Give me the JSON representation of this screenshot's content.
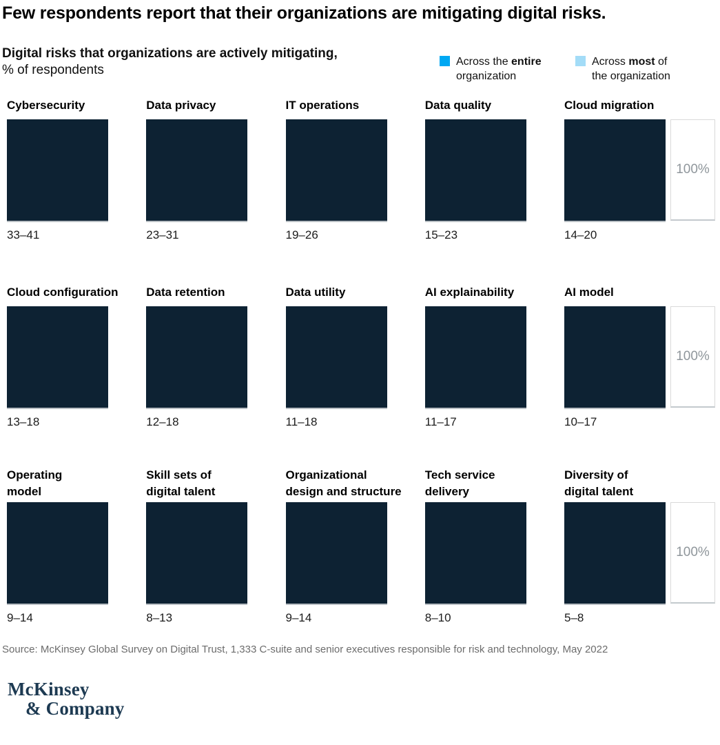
{
  "page": {
    "title": "Few respondents report that their organizations are mitigating digital risks.",
    "subtitle_bold": "Digital risks that organizations are actively mitigating,",
    "subtitle_unit": "% of respondents",
    "source": "Source: McKinsey Global Survey on Digital Trust, 1,333 C-suite and senior executives responsible for risk and technology, May 2022",
    "logo_line1": "McKinsey",
    "logo_line2": "& Company"
  },
  "colors": {
    "square": "#0d2233",
    "legend_entire": "#00a8f3",
    "legend_most": "#a3dcf7"
  },
  "legend": {
    "items": [
      {
        "pre": "Across the ",
        "bold": "entire",
        "post": " organization",
        "color": "#00a8f3"
      },
      {
        "pre": "Across ",
        "bold": "most",
        "post": " of the organization",
        "color": "#a3dcf7"
      }
    ]
  },
  "grid": {
    "ref_label": "100%",
    "rows": [
      {
        "cells": [
          {
            "label1": "Cybersecurity",
            "label2": "",
            "value": "33–41"
          },
          {
            "label1": "Data privacy",
            "label2": "",
            "value": "23–31"
          },
          {
            "label1": "IT operations",
            "label2": "",
            "value": "19–26"
          },
          {
            "label1": "Data quality",
            "label2": "",
            "value": "15–23"
          },
          {
            "label1": "Cloud migration",
            "label2": "",
            "value": "14–20"
          }
        ]
      },
      {
        "cells": [
          {
            "label1": "Cloud configuration",
            "label2": "",
            "value": "13–18"
          },
          {
            "label1": "Data retention",
            "label2": "",
            "value": "12–18"
          },
          {
            "label1": "Data utility",
            "label2": "",
            "value": "11–18"
          },
          {
            "label1": "AI explainability",
            "label2": "",
            "value": "11–17"
          },
          {
            "label1": "AI model",
            "label2": "",
            "value": "10–17"
          }
        ]
      },
      {
        "cells": [
          {
            "label1": "Operating",
            "label2": "model",
            "value": "9–14"
          },
          {
            "label1": "Skill sets of",
            "label2": "digital talent",
            "value": "8–13"
          },
          {
            "label1": "Organizational",
            "label2": "design and structure",
            "value": "9–14"
          },
          {
            "label1": "Tech service",
            "label2": "delivery",
            "value": "8–10"
          },
          {
            "label1": "Diversity of",
            "label2": "digital talent",
            "value": "5–8"
          }
        ]
      }
    ]
  },
  "chart_data": {
    "type": "bar",
    "subtype": "waffle-grid of 100% squares with value ranges",
    "title": "Digital risks that organizations are actively mitigating",
    "unit": "% of respondents",
    "headline": "Few respondents report that their organizations are mitigating digital risks.",
    "legend": [
      "Across the entire organization",
      "Across most of the organization"
    ],
    "legend_position": "top-right",
    "reference_label": "100%",
    "ylim": [
      0,
      100
    ],
    "categories": [
      "Cybersecurity",
      "Data privacy",
      "IT operations",
      "Data quality",
      "Cloud migration",
      "Cloud configuration",
      "Data retention",
      "Data utility",
      "AI explainability",
      "AI model",
      "Operating model",
      "Skill sets of digital talent",
      "Organizational design and structure",
      "Tech service delivery",
      "Diversity of digital talent"
    ],
    "value_labels": [
      "33–41",
      "23–31",
      "19–26",
      "15–23",
      "14–20",
      "13–18",
      "12–18",
      "11–18",
      "11–17",
      "10–17",
      "9–14",
      "8–13",
      "9–14",
      "8–10",
      "5–8"
    ],
    "series": [
      {
        "name": "Across the entire organization",
        "values": [
          33,
          23,
          19,
          15,
          14,
          13,
          12,
          11,
          11,
          10,
          9,
          8,
          9,
          8,
          5
        ]
      },
      {
        "name": "Across most of the organization",
        "values": [
          41,
          31,
          26,
          23,
          20,
          18,
          18,
          18,
          17,
          17,
          14,
          13,
          14,
          10,
          8
        ]
      }
    ],
    "source": "Source: McKinsey Global Survey on Digital Trust, 1,333 C-suite and senior executives responsible for risk and technology, May 2022"
  }
}
